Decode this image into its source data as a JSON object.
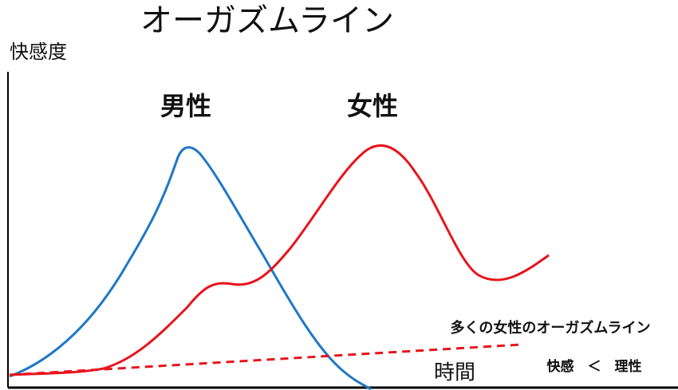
{
  "title": "オーガズムライン",
  "y_axis_label": "快感度",
  "x_axis_label": "時間",
  "curves": [
    {
      "label": "男性"
    },
    {
      "label": "女性"
    }
  ],
  "line_label": "多くの女性のオーガズムライン",
  "note": "快感　＜　理性"
}
